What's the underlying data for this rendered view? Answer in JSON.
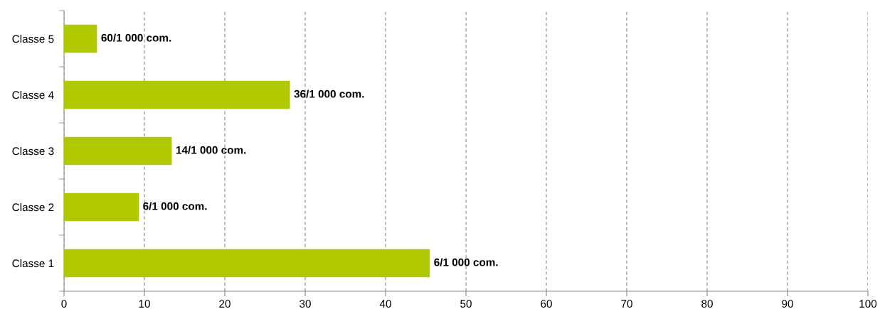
{
  "chart_data": {
    "type": "bar",
    "orientation": "horizontal",
    "categories": [
      "Classe 5",
      "Classe 4",
      "Classe 3",
      "Classe 2",
      "Classe 1"
    ],
    "values": [
      4.1,
      28.1,
      13.4,
      9.3,
      45.5
    ],
    "color": "#b0c800",
    "value_labels": [
      "60/1 000 com.",
      "36/1 000 com.",
      "14/1 000 com.",
      "6/1 000 com.",
      "6/1 000 com."
    ],
    "xlim": [
      0,
      100
    ],
    "xticks": [
      0,
      10,
      20,
      30,
      40,
      50,
      60,
      70,
      80,
      90,
      100
    ],
    "grid": "x",
    "legend": false
  }
}
